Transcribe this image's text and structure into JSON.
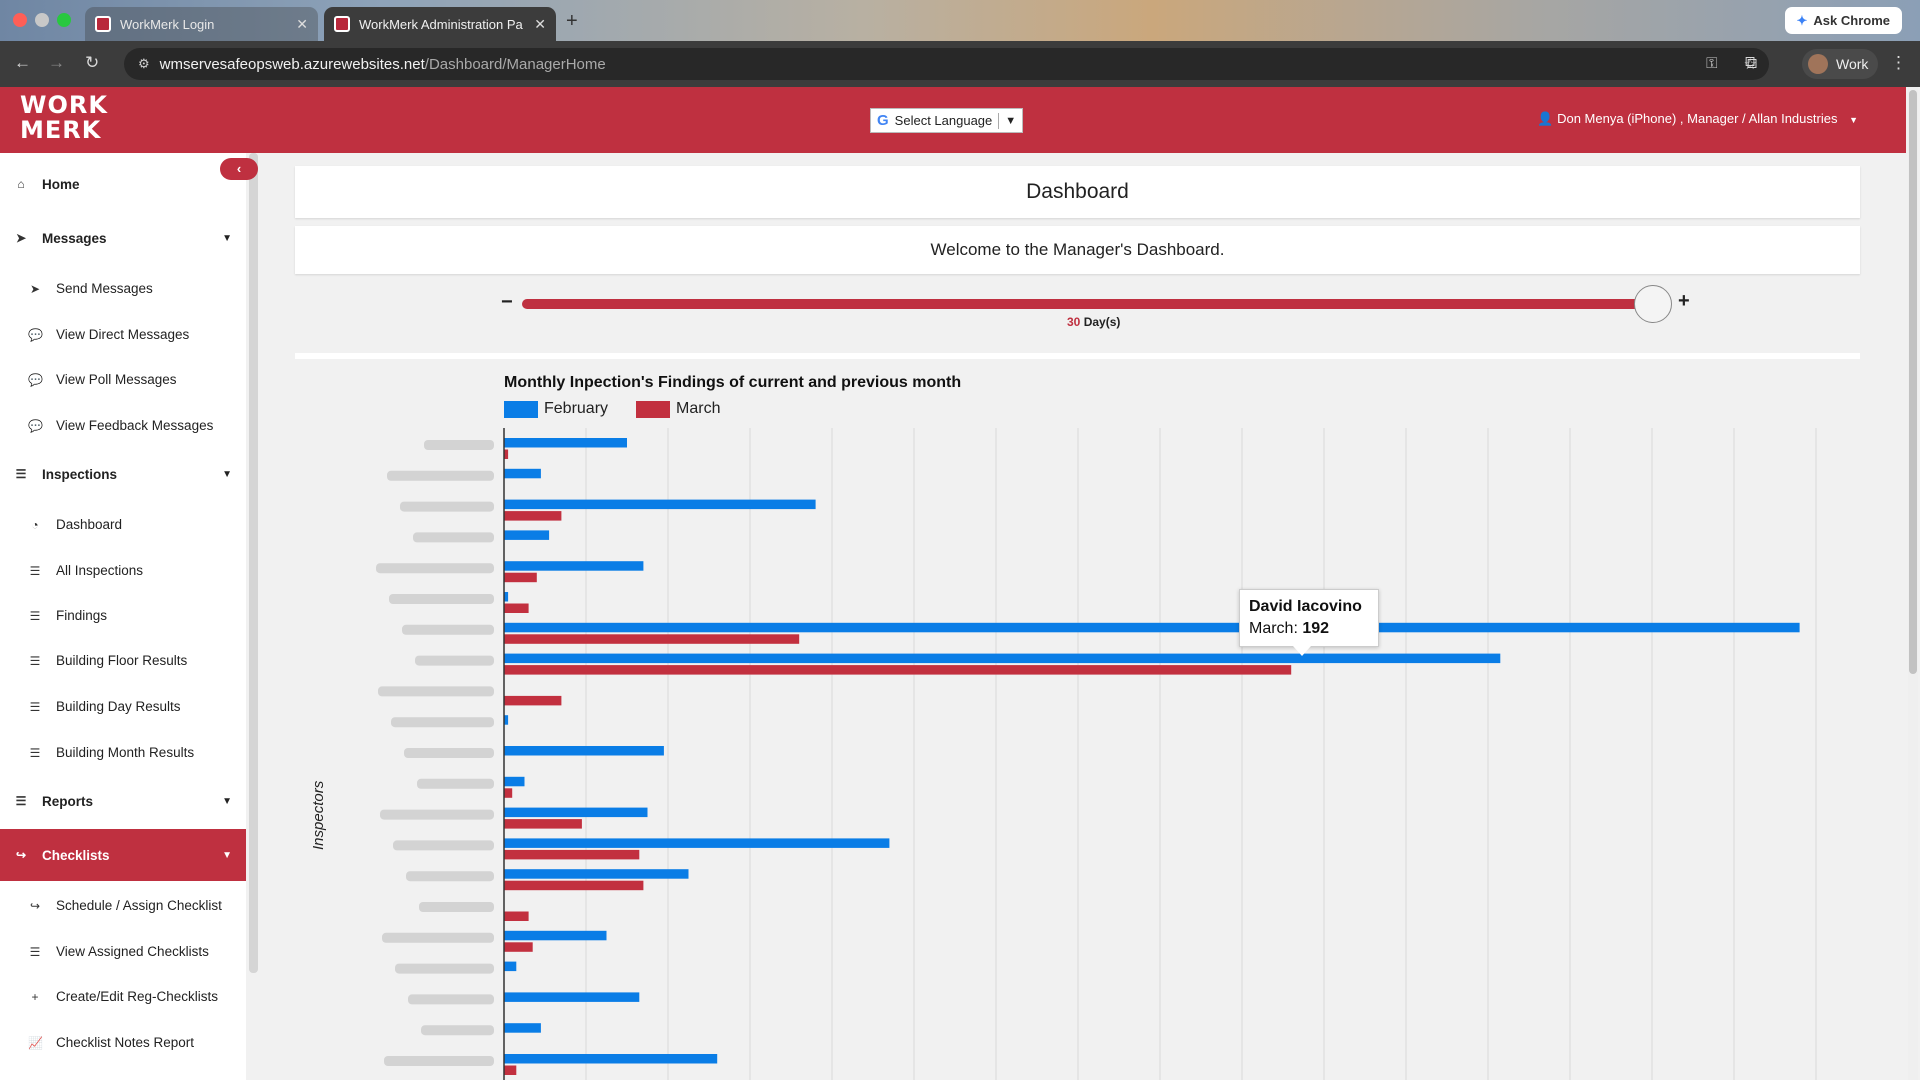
{
  "browser": {
    "tabs": [
      {
        "title": "WorkMerk Login"
      },
      {
        "title": "WorkMerk Administration Pa"
      }
    ],
    "url_host": "wmservesafeopsweb.azurewebsites.net",
    "url_path": "/Dashboard/ManagerHome",
    "ask_chrome": "Ask Chrome",
    "profile": "Work"
  },
  "header": {
    "logo_line1": "WORK",
    "logo_line2": "MERK",
    "language_select": "Select Language",
    "user": "Don Menya (iPhone) , Manager /  Allan Industries"
  },
  "sidebar": {
    "home": "Home",
    "messages": "Messages",
    "send_messages": "Send Messages",
    "view_direct_messages": "View Direct Messages",
    "view_poll_messages": "View Poll Messages",
    "view_feedback_messages": "View Feedback Messages",
    "inspections": "Inspections",
    "dashboard": "Dashboard",
    "all_inspections": "All Inspections",
    "findings": "Findings",
    "building_floor_results": "Building Floor Results",
    "building_day_results": "Building Day Results",
    "building_month_results": "Building Month Results",
    "reports": "Reports",
    "checklists": "Checklists",
    "schedule_assign_checklist": "Schedule / Assign Checklist",
    "view_assigned_checklists": "View Assigned Checklists",
    "create_edit_reg_checklists": "Create/Edit Reg-Checklists",
    "checklist_notes_report": "Checklist Notes Report"
  },
  "main": {
    "title": "Dashboard",
    "welcome": "Welcome to the Manager's Dashboard.",
    "slider": {
      "minus": "−",
      "plus": "+",
      "days_value": "30",
      "days_unit": " Day(s)",
      "level": 1.0
    }
  },
  "colors": {
    "brand": "#bf3040",
    "february": "#0a7de6",
    "march": "#c2303f"
  },
  "chart_data": {
    "type": "bar",
    "orientation": "horizontal",
    "title": "Monthly Inpection's Findings of current and previous month",
    "ylabel": "Inspectors",
    "xlim": [
      0,
      320
    ],
    "grid": true,
    "legend_position": "top-left",
    "series": [
      {
        "name": "February",
        "values": [
          30,
          9,
          76,
          11,
          34,
          1,
          316,
          243,
          0,
          1,
          39,
          5,
          35,
          94,
          45,
          0,
          25,
          3,
          33,
          9,
          52
        ]
      },
      {
        "name": "March",
        "values": [
          1,
          0,
          14,
          0,
          8,
          6,
          72,
          192,
          14,
          0,
          0,
          2,
          19,
          33,
          34,
          6,
          7,
          0,
          0,
          0,
          3
        ]
      }
    ],
    "tooltip": {
      "name": "David Iacovino",
      "series": "March",
      "label": "March: ",
      "value": "192"
    }
  }
}
